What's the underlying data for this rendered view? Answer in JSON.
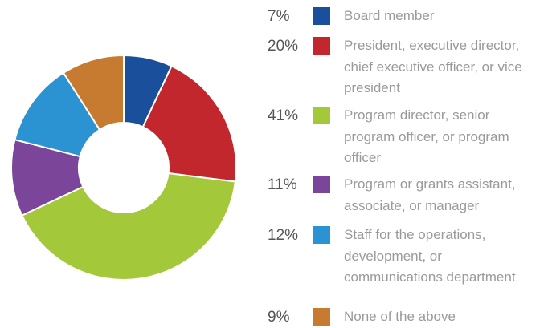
{
  "chart_data": {
    "type": "donut",
    "categories": [
      "Board member",
      "President, executive director, chief executive officer, or vice president",
      "Program director, senior program officer, or program officer",
      "Program or grants assistant, associate, or manager",
      "Staff for the operations, development, or communications department",
      "None of the above"
    ],
    "values": [
      7,
      20,
      41,
      11,
      12,
      9
    ],
    "value_labels": [
      "7%",
      "20%",
      "41%",
      "11%",
      "12%",
      "9%"
    ],
    "colors": [
      "#1a4f9c",
      "#c1272d",
      "#a3c93a",
      "#7b469a",
      "#2b93d1",
      "#c77b30"
    ]
  }
}
